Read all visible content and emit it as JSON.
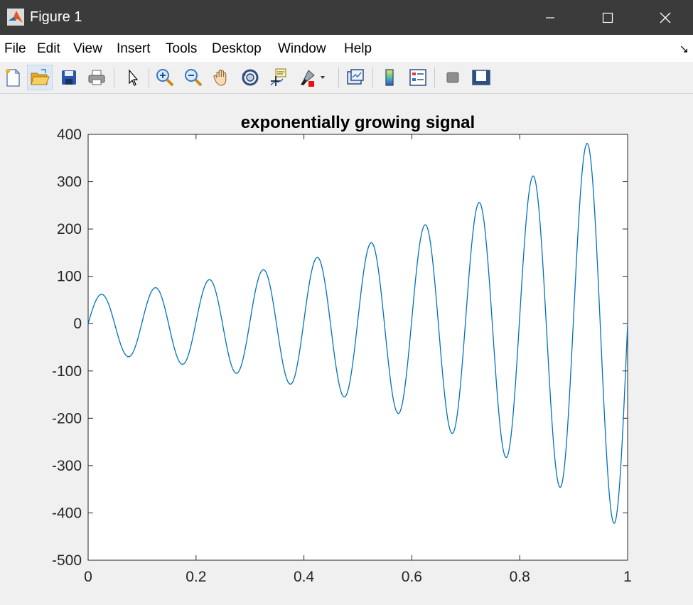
{
  "window": {
    "title": "Figure 1"
  },
  "menu": [
    "File",
    "Edit",
    "View",
    "Insert",
    "Tools",
    "Desktop",
    "Window",
    "Help"
  ],
  "toolbar": [
    "new-figure",
    "open-file",
    "save",
    "print",
    "edit-plot",
    "zoom-in",
    "zoom-out",
    "pan",
    "rotate-3d",
    "data-cursor",
    "brush",
    "link-plot",
    "insert-colorbar",
    "insert-legend",
    "hide-plot-tools",
    "show-plot-tools"
  ],
  "colors": {
    "line": "#0072bd",
    "titlebar": "#3b3b3b",
    "background": "#f0f0f0"
  },
  "chart_data": {
    "type": "line",
    "title": "exponentially growing signal",
    "xlabel": "",
    "ylabel": "",
    "xlim": [
      0,
      1
    ],
    "ylim": [
      -500,
      400
    ],
    "xticks": [
      "0",
      "0.2",
      "0.4",
      "0.6",
      "0.8",
      "1"
    ],
    "yticks": [
      "400",
      "300",
      "200",
      "100",
      "0",
      "-100",
      "-200",
      "-300",
      "-400",
      "-500"
    ],
    "grid": false,
    "series": [
      {
        "x": [
          0,
          0.025,
          0.075,
          0.125,
          0.175,
          0.225,
          0.275,
          0.325,
          0.375,
          0.425,
          0.475,
          0.525,
          0.575,
          0.625,
          0.675,
          0.725,
          0.775,
          0.825,
          0.875,
          0.925,
          0.975,
          1
        ],
        "y": [
          0,
          62,
          -70,
          76,
          -86,
          93,
          -105,
          114,
          -128,
          140,
          -155,
          171,
          -190,
          209,
          -232,
          256,
          -283,
          312,
          -346,
          381,
          -422,
          0
        ]
      }
    ]
  }
}
